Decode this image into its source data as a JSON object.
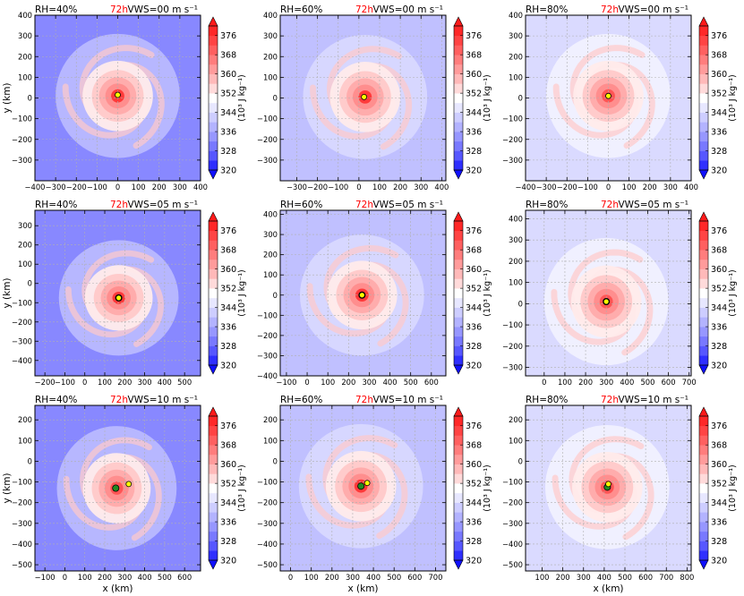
{
  "colors": {
    "cmap_low": "#1010ff",
    "cmap_mid": "#ffffff",
    "cmap_high": "#ff1a1a",
    "time_label": "#ff0000",
    "eye_marker": "#ffff00",
    "center_marker": "#228b22",
    "grid": "#b0b0b0"
  },
  "colorbar": {
    "unit_label": "(10³ J kg⁻¹)",
    "levels": [
      320,
      324,
      328,
      332,
      336,
      340,
      344,
      348,
      352,
      356,
      360,
      364,
      368,
      372,
      376,
      380
    ],
    "tick_labels": [
      "320",
      "328",
      "336",
      "344",
      "352",
      "360",
      "368",
      "376"
    ]
  },
  "chart_data": [
    {
      "type": "heatmap",
      "panel": "RH=40%, VWS=00",
      "rh_label": "RH=40%",
      "time_label": "72h",
      "vws_label": "VWS=00 m s⁻¹",
      "xlim": [
        -400,
        400
      ],
      "ylim": [
        -400,
        400
      ],
      "xticks": [
        -400,
        -300,
        -200,
        -100,
        0,
        100,
        200,
        300,
        400
      ],
      "yticks": [
        -300,
        -200,
        -100,
        0,
        100,
        200,
        300,
        400
      ],
      "xlabel": "",
      "ylabel": "y (km)",
      "storm_center": [
        0,
        10
      ],
      "eye_marker": [
        0,
        15
      ],
      "center_marker": null,
      "background_level": 332,
      "outer_level": 340,
      "core_level": 364,
      "eye_level": 376
    },
    {
      "type": "heatmap",
      "panel": "RH=60%, VWS=00",
      "rh_label": "RH=60%",
      "time_label": "72h",
      "vws_label": "VWS=00 m s⁻¹",
      "xlim": [
        -380,
        420
      ],
      "ylim": [
        -400,
        400
      ],
      "xticks": [
        -300,
        -200,
        -100,
        0,
        100,
        200,
        300,
        400
      ],
      "yticks": [
        -300,
        -200,
        -100,
        0,
        100,
        200,
        300,
        400
      ],
      "xlabel": "",
      "ylabel": "",
      "storm_center": [
        30,
        5
      ],
      "eye_marker": [
        25,
        5
      ],
      "center_marker": null,
      "background_level": 340,
      "outer_level": 344,
      "core_level": 364,
      "eye_level": 376
    },
    {
      "type": "heatmap",
      "panel": "RH=80%, VWS=00",
      "rh_label": "RH=80%",
      "time_label": "72h",
      "vws_label": "VWS=00 m s⁻¹",
      "xlim": [
        -400,
        400
      ],
      "ylim": [
        -400,
        400
      ],
      "xticks": [
        -400,
        -300,
        -200,
        -100,
        0,
        100,
        200,
        300,
        400
      ],
      "yticks": [
        -300,
        -200,
        -100,
        0,
        100,
        200,
        300,
        400
      ],
      "xlabel": "",
      "ylabel": "",
      "storm_center": [
        0,
        10
      ],
      "eye_marker": [
        0,
        10
      ],
      "center_marker": null,
      "background_level": 344,
      "outer_level": 348,
      "core_level": 364,
      "eye_level": 372
    },
    {
      "type": "heatmap",
      "panel": "RH=40%, VWS=05",
      "rh_label": "RH=40%",
      "time_label": "72h",
      "vws_label": "VWS=05 m s⁻¹",
      "xlim": [
        -250,
        580
      ],
      "ylim": [
        -480,
        380
      ],
      "xticks": [
        -200,
        -100,
        0,
        100,
        200,
        300,
        400,
        500
      ],
      "yticks": [
        -400,
        -300,
        -200,
        -100,
        0,
        100,
        200,
        300
      ],
      "xlabel": "",
      "ylabel": "y (km)",
      "storm_center": [
        170,
        -75
      ],
      "eye_marker": [
        170,
        -75
      ],
      "center_marker": [
        170,
        -75
      ],
      "background_level": 332,
      "outer_level": 340,
      "core_level": 364,
      "eye_level": 376
    },
    {
      "type": "heatmap",
      "panel": "RH=60%, VWS=05",
      "rh_label": "RH=60%",
      "time_label": "72h",
      "vws_label": "VWS=05 m s⁻¹",
      "xlim": [
        -130,
        670
      ],
      "ylim": [
        -400,
        420
      ],
      "xticks": [
        -100,
        0,
        100,
        200,
        300,
        400,
        500,
        600
      ],
      "yticks": [
        -400,
        -300,
        -200,
        -100,
        0,
        100,
        200,
        300,
        400
      ],
      "xlabel": "",
      "ylabel": "",
      "storm_center": [
        265,
        0
      ],
      "eye_marker": [
        265,
        0
      ],
      "center_marker": [
        265,
        0
      ],
      "background_level": 340,
      "outer_level": 344,
      "core_level": 364,
      "eye_level": 376
    },
    {
      "type": "heatmap",
      "panel": "RH=80%, VWS=05",
      "rh_label": "RH=80%",
      "time_label": "72h",
      "vws_label": "VWS=05 m s⁻¹",
      "xlim": [
        -90,
        710
      ],
      "ylim": [
        -340,
        440
      ],
      "xticks": [
        0,
        100,
        200,
        300,
        400,
        500,
        600,
        700
      ],
      "yticks": [
        -300,
        -200,
        -100,
        0,
        100,
        200,
        300,
        400
      ],
      "xlabel": "",
      "ylabel": "",
      "storm_center": [
        300,
        10
      ],
      "eye_marker": [
        300,
        10
      ],
      "center_marker": [
        300,
        10
      ],
      "background_level": 344,
      "outer_level": 348,
      "core_level": 364,
      "eye_level": 372
    },
    {
      "type": "heatmap",
      "panel": "RH=40%, VWS=10",
      "rh_label": "RH=40%",
      "time_label": "72h",
      "vws_label": "VWS=10 m s⁻¹",
      "xlim": [
        -150,
        680
      ],
      "ylim": [
        -530,
        270
      ],
      "xticks": [
        -100,
        0,
        100,
        200,
        300,
        400,
        500,
        600
      ],
      "yticks": [
        -500,
        -400,
        -300,
        -200,
        -100,
        0,
        100,
        200
      ],
      "xlabel": "x (km)",
      "ylabel": "y (km)",
      "storm_center": [
        260,
        -130
      ],
      "eye_marker": [
        320,
        -110
      ],
      "center_marker": [
        255,
        -130
      ],
      "background_level": 332,
      "outer_level": 340,
      "core_level": 364,
      "eye_level": 372
    },
    {
      "type": "heatmap",
      "panel": "RH=60%, VWS=10",
      "rh_label": "RH=60%",
      "time_label": "72h",
      "vws_label": "VWS=10 m s⁻¹",
      "xlim": [
        -50,
        750
      ],
      "ylim": [
        -530,
        270
      ],
      "xticks": [
        0,
        100,
        200,
        300,
        400,
        500,
        600,
        700
      ],
      "yticks": [
        -500,
        -400,
        -300,
        -200,
        -100,
        0,
        100,
        200
      ],
      "xlabel": "x (km)",
      "ylabel": "",
      "storm_center": [
        340,
        -120
      ],
      "eye_marker": [
        370,
        -105
      ],
      "center_marker": [
        340,
        -120
      ],
      "background_level": 340,
      "outer_level": 344,
      "core_level": 364,
      "eye_level": 376
    },
    {
      "type": "heatmap",
      "panel": "RH=80%, VWS=10",
      "rh_label": "RH=80%",
      "time_label": "72h",
      "vws_label": "VWS=10 m s⁻¹",
      "xlim": [
        20,
        820
      ],
      "ylim": [
        -530,
        270
      ],
      "xticks": [
        100,
        200,
        300,
        400,
        500,
        600,
        700,
        800
      ],
      "yticks": [
        -500,
        -400,
        -300,
        -200,
        -100,
        0,
        100,
        200
      ],
      "xlabel": "x (km)",
      "ylabel": "",
      "storm_center": [
        415,
        -125
      ],
      "eye_marker": [
        420,
        -110
      ],
      "center_marker": [
        415,
        -125
      ],
      "background_level": 344,
      "outer_level": 348,
      "core_level": 364,
      "eye_level": 372
    }
  ]
}
